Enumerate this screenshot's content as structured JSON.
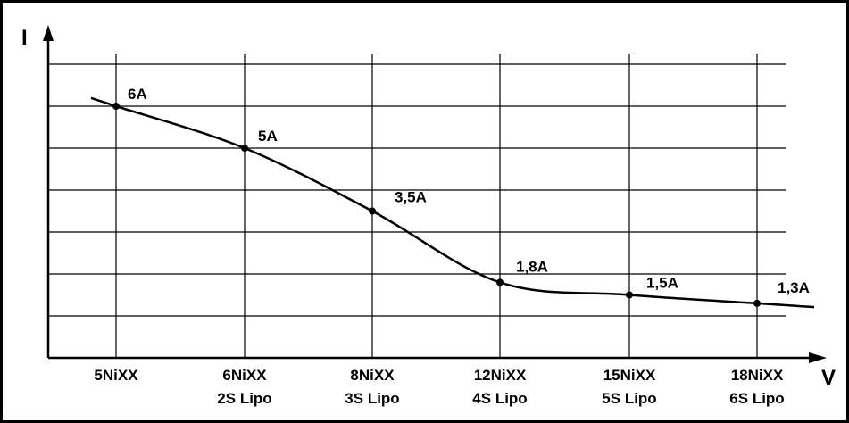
{
  "chart_data": {
    "type": "line",
    "xlabel": "V",
    "ylabel": "I",
    "categories": [
      [
        "5NiXX"
      ],
      [
        "6NiXX",
        "2S Lipo"
      ],
      [
        "8NiXX",
        "3S Lipo"
      ],
      [
        "12NiXX",
        "4S Lipo"
      ],
      [
        "15NiXX",
        "5S Lipo"
      ],
      [
        "18NiXX",
        "6S Lipo"
      ]
    ],
    "values": [
      6,
      5,
      3.5,
      1.8,
      1.5,
      1.3
    ],
    "data_labels": [
      "6A",
      "5A",
      "3,5A",
      "1,8A",
      "1,5A",
      "1,3A"
    ],
    "ylim": [
      0,
      7
    ],
    "grid": true,
    "legend": "none",
    "colors": {
      "line": "#000000",
      "grid": "#000000",
      "frame": "#000000",
      "background": "#ffffff"
    }
  }
}
